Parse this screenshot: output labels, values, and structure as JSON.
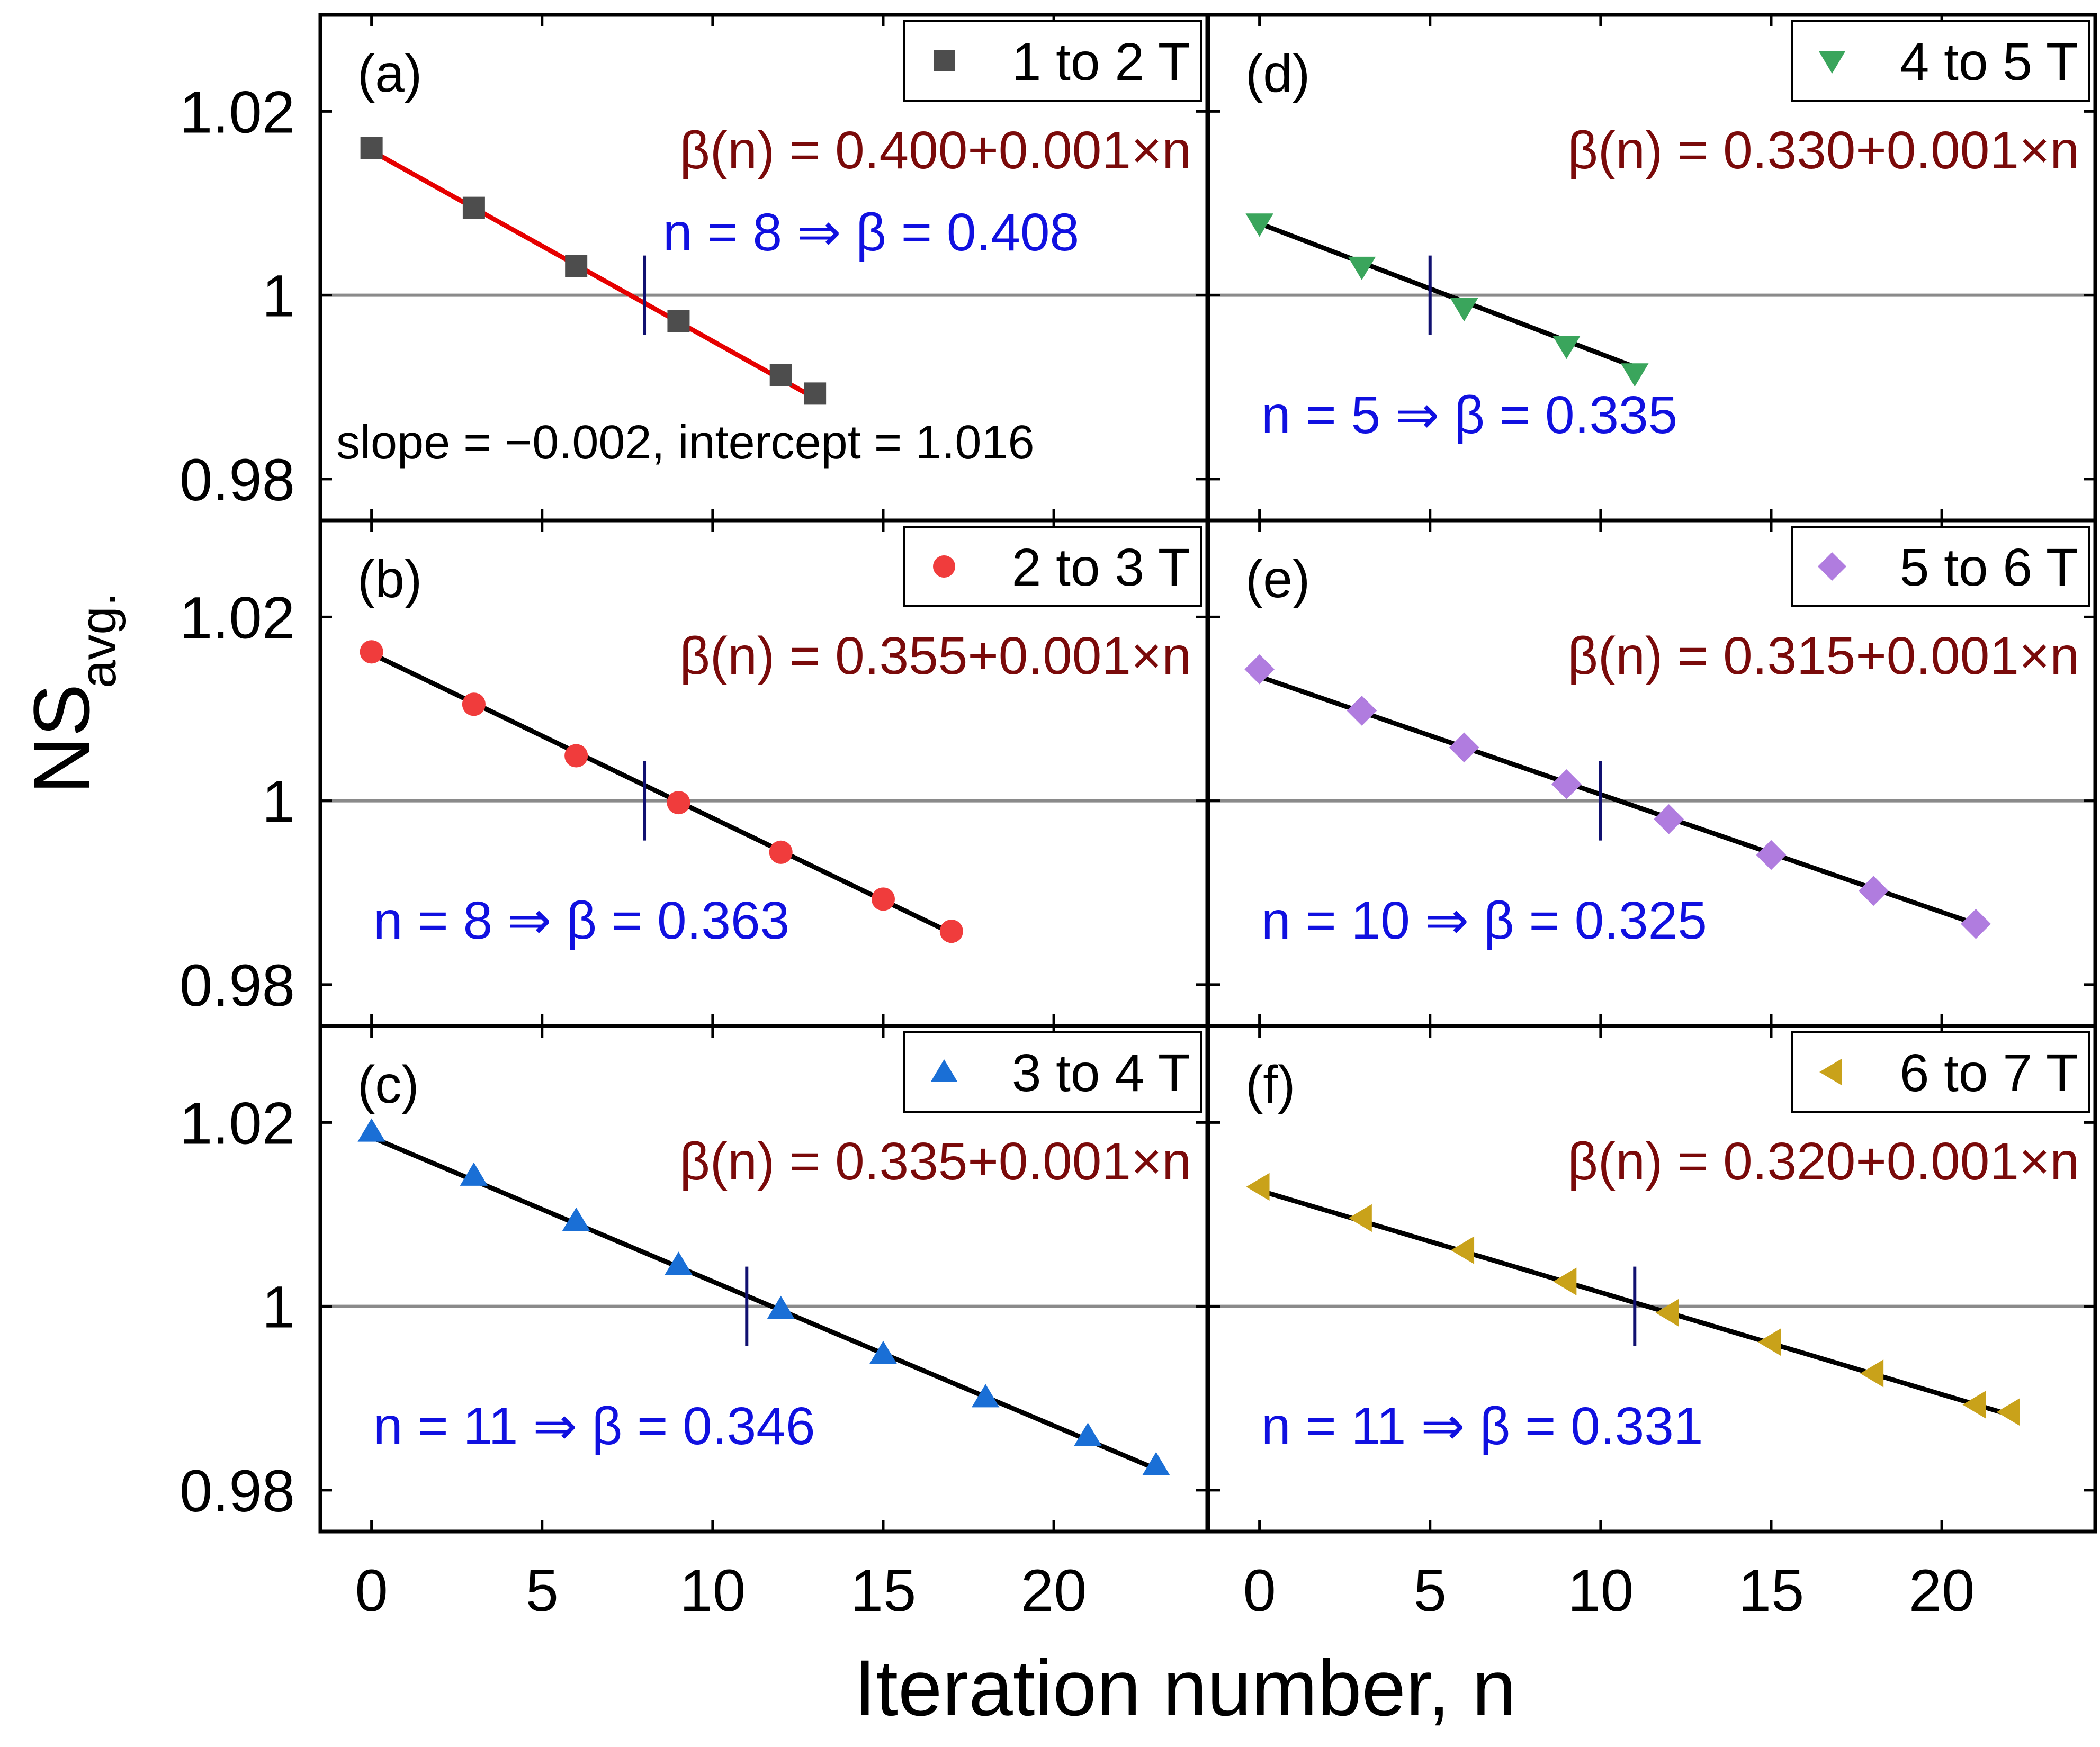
{
  "chart_data": {
    "type": "scatter",
    "xlabel": "Iteration number, n",
    "ylabel": "NS",
    "ylabel_sub": "avg.",
    "xlim": [
      -1.5,
      24.5
    ],
    "ylim": [
      0.9755,
      1.0305
    ],
    "x_ticks": [
      0,
      5,
      10,
      15,
      20
    ],
    "x_tick_labels": [
      "0",
      "5",
      "10",
      "15",
      "20"
    ],
    "y_ticks": [
      0.98,
      1.0,
      1.02
    ],
    "y_tick_labels": [
      "0.98",
      "1",
      "1.02"
    ],
    "reference_line_y": 1.0,
    "panels": [
      {
        "label": "(a)",
        "legend": "1 to 2 T",
        "marker": "square",
        "color": "#4d4d4d",
        "fit_color": "#e60000",
        "formula": "β(n) = 0.400+0.001×n",
        "result": "n = 8 ⇒ β = 0.408",
        "fit_note": "slope = −0.002, intercept = 1.016",
        "crossing_n": 8,
        "x": [
          0,
          3,
          6,
          9,
          12,
          13
        ],
        "y": [
          1.016,
          1.0095,
          1.0032,
          0.9972,
          0.9913,
          0.9893
        ],
        "fit": {
          "x0": 0,
          "y0": 1.0157,
          "x1": 13,
          "y1": 0.9888
        }
      },
      {
        "label": "(b)",
        "legend": "2 to 3 T",
        "marker": "circle",
        "color": "#f03c3c",
        "fit_color": "#000000",
        "formula": "β(n) = 0.355+0.001×n",
        "result": "n = 8 ⇒ β = 0.363",
        "crossing_n": 8,
        "x": [
          0,
          3,
          6,
          9,
          12,
          15,
          17
        ],
        "y": [
          1.0162,
          1.0105,
          1.0049,
          0.9998,
          0.9944,
          0.9893,
          0.9858
        ],
        "fit": {
          "x0": 0,
          "y0": 1.016,
          "x1": 17,
          "y1": 0.9856
        }
      },
      {
        "label": "(c)",
        "legend": "3 to 4 T",
        "marker": "triangle-up",
        "color": "#1a6fd6",
        "fit_color": "#000000",
        "formula": "β(n) = 0.335+0.001×n",
        "result": "n = 11 ⇒ β = 0.346",
        "crossing_n": 11,
        "x": [
          0,
          3,
          6,
          9,
          12,
          15,
          18,
          21,
          23
        ],
        "y": [
          1.019,
          1.0142,
          1.0093,
          1.0045,
          0.9997,
          0.9948,
          0.9901,
          0.9859,
          0.9827
        ],
        "fit": {
          "x0": 0,
          "y0": 1.0184,
          "x1": 23,
          "y1": 0.9823
        }
      },
      {
        "label": "(d)",
        "legend": "4 to 5 T",
        "marker": "triangle-down",
        "color": "#3aa55c",
        "fit_color": "#000000",
        "formula": "β(n) = 0.330+0.001×n",
        "result": "n = 5 ⇒ β = 0.335",
        "crossing_n": 5,
        "x": [
          0,
          3,
          6,
          9,
          11
        ],
        "y": [
          1.0078,
          1.0031,
          0.9986,
          0.9945,
          0.9915
        ],
        "fit": {
          "x0": 0,
          "y0": 1.0078,
          "x1": 11,
          "y1": 0.9922
        }
      },
      {
        "label": "(e)",
        "legend": "5 to 6 T",
        "marker": "diamond",
        "color": "#b07cdf",
        "fit_color": "#000000",
        "formula": "β(n) = 0.315+0.001×n",
        "result": "n = 10 ⇒ β = 0.325",
        "crossing_n": 10,
        "x": [
          0,
          3,
          6,
          9,
          12,
          15,
          18,
          21
        ],
        "y": [
          1.0143,
          1.0098,
          1.0058,
          1.0018,
          0.998,
          0.9941,
          0.9902,
          0.9866
        ],
        "fit": {
          "x0": 0,
          "y0": 1.0135,
          "x1": 21,
          "y1": 0.9866
        }
      },
      {
        "label": "(f)",
        "legend": "6 to 7 T",
        "marker": "triangle-left",
        "color": "#c9a21a",
        "fit_color": "#000000",
        "formula": "β(n) = 0.320+0.001×n",
        "result": "n = 11 ⇒ β = 0.331",
        "crossing_n": 11,
        "x": [
          0,
          3,
          6,
          9,
          12,
          15,
          18,
          21,
          22
        ],
        "y": [
          1.013,
          1.0096,
          1.0061,
          1.0027,
          0.9993,
          0.9961,
          0.9927,
          0.9893,
          0.9885
        ],
        "fit": {
          "x0": 0,
          "y0": 1.0126,
          "x1": 22,
          "y1": 0.9882
        }
      }
    ]
  }
}
